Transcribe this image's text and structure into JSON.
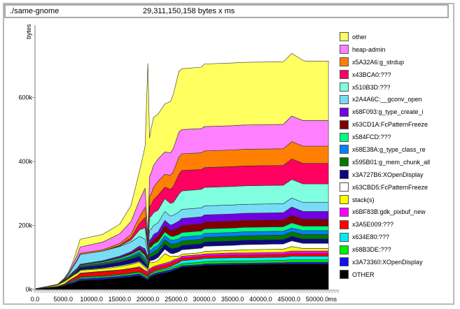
{
  "header": {
    "command": "./same-gnome",
    "total": "29,311,150,158 bytes x ms"
  },
  "chart_data": {
    "type": "area",
    "title": "./same-gnome",
    "subtitle": "29,311,150,158 bytes x ms",
    "xlabel": "ms",
    "ylabel": "bytes",
    "xlim": [
      0,
      53000
    ],
    "ylim": [
      0,
      800
    ],
    "y_unit": "k",
    "x_ticks": [
      "0.0",
      "5000.0",
      "10000.0",
      "15000.0",
      "20000.0",
      "25000.0",
      "30000.0",
      "35000.0",
      "40000.0",
      "45000.0",
      "50000.0"
    ],
    "y_ticks": [
      "0k",
      "200k",
      "400k",
      "600k"
    ],
    "legend_position": "right",
    "grid": false,
    "stacked": true,
    "x": [
      0,
      4000,
      5200,
      6000,
      6800,
      7500,
      8000,
      12000,
      15000,
      17000,
      18500,
      19500,
      20000,
      20300,
      20600,
      21000,
      21800,
      23000,
      24000,
      24500,
      25500,
      26000,
      29500,
      30000,
      35000,
      37000,
      44000,
      45500,
      47500,
      48000,
      50000,
      52000
    ],
    "series": [
      {
        "name": "OTHER",
        "color": "#000000",
        "values": [
          2,
          8,
          12,
          18,
          20,
          25,
          28,
          32,
          36,
          40,
          44,
          34,
          30,
          38,
          40,
          44,
          48,
          52,
          56,
          60,
          66,
          70,
          74,
          76,
          78,
          78,
          80,
          80,
          80,
          80,
          80,
          80
        ]
      },
      {
        "name": "x3A73360:XOpenDisplay",
        "color": "#1010f0",
        "values": [
          0,
          1,
          2,
          3,
          4,
          4,
          5,
          5,
          5,
          5,
          5,
          5,
          4,
          5,
          5,
          5,
          5,
          5,
          5,
          5,
          4,
          4,
          4,
          4,
          4,
          4,
          4,
          5,
          5,
          5,
          5,
          5
        ]
      },
      {
        "name": "x68B3DE:???",
        "color": "#00ee00",
        "values": [
          0,
          1,
          1,
          2,
          3,
          3,
          4,
          4,
          4,
          5,
          5,
          5,
          5,
          5,
          5,
          5,
          5,
          5,
          5,
          5,
          6,
          6,
          7,
          7,
          7,
          7,
          7,
          8,
          8,
          8,
          8,
          8
        ]
      },
      {
        "name": "x634E80:???",
        "color": "#00eeee",
        "values": [
          0,
          0,
          1,
          1,
          1,
          1,
          2,
          2,
          2,
          2,
          2,
          2,
          2,
          2,
          2,
          3,
          3,
          4,
          5,
          6,
          8,
          10,
          10,
          10,
          10,
          10,
          10,
          11,
          11,
          11,
          11,
          11
        ]
      },
      {
        "name": "x3A5E009:???",
        "color": "#ff0000",
        "values": [
          0,
          0,
          1,
          3,
          6,
          8,
          10,
          12,
          12,
          12,
          12,
          10,
          8,
          10,
          10,
          10,
          10,
          10,
          10,
          10,
          8,
          8,
          8,
          8,
          8,
          8,
          8,
          8,
          8,
          8,
          8,
          8
        ]
      },
      {
        "name": "x6BF83B:gdk_pixbuf_new",
        "color": "#ff00ff",
        "values": [
          0,
          0,
          0,
          1,
          2,
          2,
          2,
          2,
          2,
          2,
          3,
          3,
          8,
          5,
          5,
          5,
          5,
          6,
          6,
          6,
          6,
          6,
          6,
          6,
          7,
          7,
          7,
          8,
          8,
          8,
          8,
          8
        ]
      },
      {
        "name": "stack(s)",
        "color": "#ffff00",
        "values": [
          0,
          4,
          8,
          6,
          8,
          8,
          8,
          8,
          10,
          12,
          14,
          10,
          4,
          20,
          18,
          12,
          14,
          30,
          16,
          12,
          6,
          6,
          6,
          8,
          8,
          10,
          10,
          14,
          8,
          8,
          8,
          8
        ]
      },
      {
        "name": "x63CBD5:FcPatternFreeze",
        "color": "#ffffff",
        "values": [
          0,
          0,
          0,
          1,
          2,
          2,
          2,
          2,
          3,
          3,
          3,
          4,
          4,
          4,
          6,
          8,
          10,
          14,
          10,
          8,
          14,
          14,
          14,
          16,
          16,
          16,
          16,
          18,
          16,
          16,
          16,
          16
        ]
      },
      {
        "name": "x3A727B6:XOpenDisplay",
        "color": "#0a0a80",
        "values": [
          0,
          0,
          1,
          2,
          3,
          6,
          8,
          10,
          12,
          14,
          16,
          10,
          6,
          12,
          12,
          14,
          14,
          16,
          16,
          16,
          14,
          14,
          14,
          14,
          14,
          14,
          14,
          14,
          14,
          14,
          14,
          14
        ]
      },
      {
        "name": "x595B01:g_mem_chunk_all",
        "color": "#007a00",
        "values": [
          0,
          0,
          1,
          1,
          2,
          2,
          3,
          4,
          5,
          6,
          8,
          8,
          6,
          10,
          10,
          12,
          12,
          14,
          14,
          14,
          14,
          14,
          14,
          14,
          14,
          14,
          14,
          14,
          14,
          14,
          14,
          14
        ]
      },
      {
        "name": "x68E38A:g_type_class_re",
        "color": "#0080ff",
        "values": [
          0,
          0,
          1,
          1,
          2,
          2,
          2,
          2,
          3,
          4,
          6,
          8,
          6,
          10,
          10,
          12,
          12,
          12,
          12,
          12,
          12,
          12,
          12,
          12,
          12,
          12,
          12,
          12,
          12,
          12,
          12,
          12
        ]
      },
      {
        "name": "x584FCD:???",
        "color": "#00ff80",
        "values": [
          0,
          0,
          1,
          1,
          1,
          2,
          2,
          3,
          4,
          5,
          6,
          8,
          6,
          10,
          10,
          12,
          12,
          12,
          12,
          12,
          14,
          14,
          14,
          14,
          14,
          14,
          14,
          16,
          14,
          14,
          14,
          14
        ]
      },
      {
        "name": "x63CD1A:FcPatternFreeze",
        "color": "#800000",
        "values": [
          0,
          0,
          0,
          1,
          1,
          1,
          2,
          2,
          3,
          4,
          6,
          10,
          8,
          12,
          14,
          16,
          16,
          20,
          18,
          20,
          22,
          22,
          22,
          22,
          22,
          22,
          22,
          24,
          22,
          22,
          22,
          22
        ]
      },
      {
        "name": "x68F093:g_type_create_i",
        "color": "#7000e0",
        "values": [
          0,
          0,
          0,
          1,
          1,
          1,
          1,
          2,
          3,
          4,
          6,
          10,
          6,
          12,
          12,
          14,
          14,
          16,
          16,
          18,
          20,
          22,
          22,
          22,
          22,
          22,
          22,
          26,
          24,
          24,
          24,
          24
        ]
      },
      {
        "name": "x2A4A6C:__gconv_open",
        "color": "#77ddf7",
        "values": [
          0,
          0,
          2,
          6,
          16,
          24,
          30,
          30,
          30,
          30,
          30,
          30,
          14,
          30,
          30,
          28,
          28,
          28,
          28,
          28,
          28,
          28,
          28,
          28,
          28,
          28,
          28,
          28,
          28,
          28,
          28,
          28
        ]
      },
      {
        "name": "x510B3D:???",
        "color": "#7fffe0",
        "values": [
          0,
          0,
          0,
          0,
          0,
          0,
          0,
          0,
          2,
          6,
          20,
          36,
          10,
          40,
          40,
          40,
          40,
          40,
          40,
          40,
          56,
          58,
          58,
          58,
          58,
          58,
          58,
          58,
          58,
          58,
          58,
          58
        ]
      },
      {
        "name": "x43BCA0:???",
        "color": "#ff0060",
        "values": [
          0,
          0,
          0,
          0,
          0,
          0,
          0,
          0,
          2,
          8,
          20,
          32,
          10,
          34,
          36,
          40,
          46,
          36,
          44,
          50,
          62,
          64,
          62,
          62,
          62,
          62,
          62,
          64,
          64,
          64,
          64,
          64
        ]
      },
      {
        "name": "x5A32A6:g_strdup",
        "color": "#ff8000",
        "values": [
          0,
          0,
          0,
          1,
          2,
          3,
          4,
          4,
          6,
          10,
          20,
          32,
          10,
          32,
          34,
          40,
          44,
          40,
          44,
          46,
          54,
          52,
          52,
          52,
          52,
          52,
          52,
          54,
          54,
          54,
          54,
          54
        ]
      },
      {
        "name": "heap-admin",
        "color": "#ff80ff",
        "values": [
          0,
          1,
          2,
          4,
          8,
          14,
          20,
          24,
          30,
          40,
          52,
          60,
          20,
          62,
          66,
          68,
          70,
          70,
          70,
          72,
          78,
          76,
          76,
          76,
          76,
          76,
          76,
          80,
          80,
          80,
          80,
          80
        ]
      },
      {
        "name": "other",
        "color": "#ffff60",
        "values": [
          0,
          1,
          2,
          4,
          8,
          20,
          24,
          24,
          30,
          50,
          90,
          130,
          540,
          120,
          140,
          150,
          140,
          150,
          160,
          170,
          190,
          190,
          192,
          196,
          196,
          196,
          196,
          196,
          188,
          186,
          186,
          186
        ]
      }
    ]
  },
  "legend": {
    "items": [
      {
        "label": "other",
        "color": "#ffff60"
      },
      {
        "label": "heap-admin",
        "color": "#ff80ff"
      },
      {
        "label": "x5A32A6:g_strdup",
        "color": "#ff8000"
      },
      {
        "label": "x43BCA0:???",
        "color": "#ff0060"
      },
      {
        "label": "x510B3D:???",
        "color": "#7fffe0"
      },
      {
        "label": "x2A4A6C:__gconv_open",
        "color": "#77ddf7"
      },
      {
        "label": "x68F093:g_type_create_i",
        "color": "#7000e0"
      },
      {
        "label": "x63CD1A:FcPatternFreeze",
        "color": "#800000"
      },
      {
        "label": "x584FCD:???",
        "color": "#00ff80"
      },
      {
        "label": "x68E38A:g_type_class_re",
        "color": "#0080ff"
      },
      {
        "label": "x595B01:g_mem_chunk_all",
        "color": "#007a00"
      },
      {
        "label": "x3A727B6:XOpenDisplay",
        "color": "#0a0a80"
      },
      {
        "label": "x63CBD5:FcPatternFreeze",
        "color": "#ffffff"
      },
      {
        "label": "stack(s)",
        "color": "#ffff00"
      },
      {
        "label": "x6BF83B:gdk_pixbuf_new",
        "color": "#ff00ff"
      },
      {
        "label": "x3A5E009:???",
        "color": "#ff0000"
      },
      {
        "label": "x634E80:???",
        "color": "#00eeee"
      },
      {
        "label": "x68B3DE:???",
        "color": "#00ee00"
      },
      {
        "label": "x3A73360:XOpenDisplay",
        "color": "#1010f0"
      },
      {
        "label": "OTHER",
        "color": "#000000"
      }
    ]
  },
  "axes": {
    "y_label": "bytes",
    "x_unit": "ms"
  }
}
